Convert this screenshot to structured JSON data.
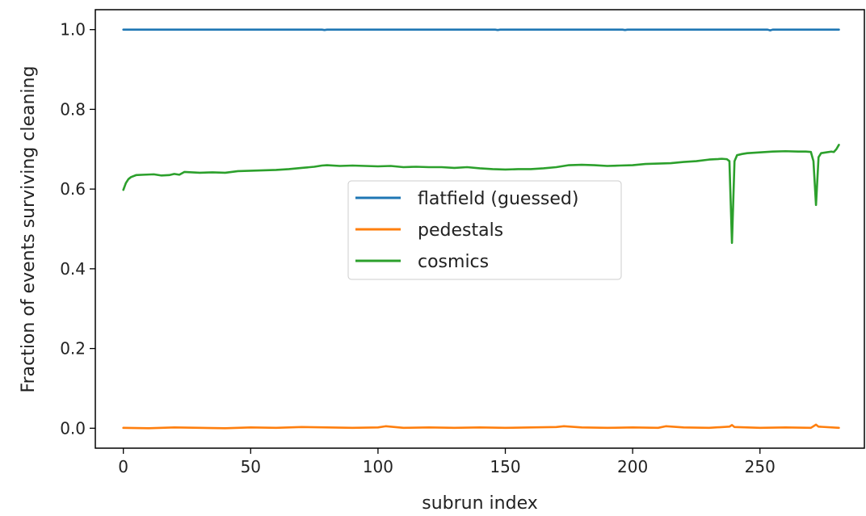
{
  "chart_data": {
    "type": "line",
    "title": "",
    "xlabel": "subrun index",
    "ylabel": "Fraction of events surviving cleaning",
    "xlim": [
      -11,
      291
    ],
    "ylim": [
      -0.05,
      1.05
    ],
    "xticks": [
      0,
      50,
      100,
      150,
      200,
      250
    ],
    "yticks": [
      0.0,
      0.2,
      0.4,
      0.6,
      0.8,
      1.0
    ],
    "xtick_labels": [
      "0",
      "50",
      "100",
      "150",
      "200",
      "250"
    ],
    "ytick_labels": [
      "0.0",
      "0.2",
      "0.4",
      "0.6",
      "0.8",
      "1.0"
    ],
    "grid": false,
    "legend_position": "center",
    "series": [
      {
        "name": "flatfield (guessed)",
        "color": "#1f77b4",
        "x": [
          0,
          78,
          79,
          80,
          146,
          147,
          148,
          196,
          197,
          198,
          253,
          254,
          255,
          281
        ],
        "y": [
          1.0,
          1.0,
          0.999,
          1.0,
          1.0,
          0.999,
          1.0,
          1.0,
          0.999,
          1.0,
          1.0,
          0.998,
          1.0,
          1.0
        ]
      },
      {
        "name": "pedestals",
        "color": "#ff7f0e",
        "x": [
          0,
          10,
          20,
          30,
          40,
          50,
          60,
          70,
          80,
          90,
          100,
          103,
          110,
          120,
          130,
          140,
          150,
          160,
          170,
          173,
          180,
          190,
          200,
          210,
          213,
          220,
          230,
          238,
          239,
          240,
          250,
          260,
          270,
          272,
          273,
          281
        ],
        "y": [
          0.001,
          0.0,
          0.002,
          0.001,
          0.0,
          0.002,
          0.001,
          0.003,
          0.002,
          0.001,
          0.002,
          0.005,
          0.001,
          0.002,
          0.001,
          0.002,
          0.001,
          0.002,
          0.003,
          0.005,
          0.002,
          0.001,
          0.002,
          0.001,
          0.005,
          0.002,
          0.001,
          0.004,
          0.008,
          0.003,
          0.001,
          0.002,
          0.001,
          0.009,
          0.004,
          0.001
        ]
      },
      {
        "name": "cosmics",
        "color": "#2ca02c",
        "x": [
          0,
          1,
          2,
          3,
          5,
          8,
          12,
          15,
          18,
          20,
          22,
          24,
          30,
          35,
          40,
          45,
          50,
          55,
          60,
          65,
          70,
          75,
          78,
          80,
          85,
          90,
          95,
          100,
          105,
          110,
          115,
          120,
          125,
          130,
          135,
          140,
          145,
          150,
          155,
          160,
          165,
          170,
          175,
          180,
          185,
          190,
          195,
          200,
          205,
          210,
          215,
          220,
          225,
          230,
          233,
          235,
          237,
          238,
          239,
          240,
          241,
          243,
          245,
          250,
          255,
          260,
          265,
          268,
          270,
          271,
          272,
          273,
          274,
          276,
          278,
          279,
          280,
          281
        ],
        "y": [
          0.598,
          0.615,
          0.625,
          0.63,
          0.635,
          0.636,
          0.637,
          0.634,
          0.635,
          0.638,
          0.636,
          0.643,
          0.641,
          0.642,
          0.641,
          0.645,
          0.646,
          0.647,
          0.648,
          0.65,
          0.653,
          0.656,
          0.659,
          0.66,
          0.658,
          0.659,
          0.658,
          0.657,
          0.658,
          0.655,
          0.656,
          0.655,
          0.655,
          0.653,
          0.655,
          0.652,
          0.65,
          0.649,
          0.65,
          0.65,
          0.652,
          0.655,
          0.66,
          0.661,
          0.66,
          0.658,
          0.659,
          0.66,
          0.663,
          0.664,
          0.665,
          0.668,
          0.67,
          0.674,
          0.675,
          0.676,
          0.675,
          0.67,
          0.465,
          0.67,
          0.685,
          0.688,
          0.69,
          0.692,
          0.694,
          0.695,
          0.694,
          0.694,
          0.693,
          0.67,
          0.56,
          0.68,
          0.69,
          0.692,
          0.694,
          0.693,
          0.7,
          0.711
        ]
      }
    ]
  }
}
